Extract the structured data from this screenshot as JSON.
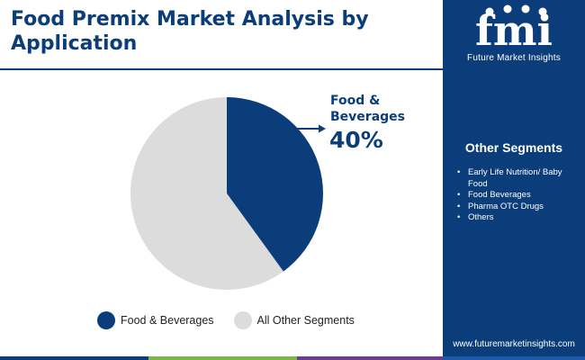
{
  "title": "Food Premix Market Analysis by Application",
  "brand": {
    "name": "Future Market Insights",
    "logo_text": "fmi",
    "website": "www.futuremarketinsights.com"
  },
  "sidebar": {
    "title": "Other Segments",
    "items": [
      "Early Life Nutrition/ Baby Food",
      "Food Beverages",
      "Pharma OTC Drugs",
      "Others"
    ]
  },
  "callout": {
    "label_line1": "Food &",
    "label_line2": "Beverages",
    "value": "40%"
  },
  "colors": {
    "navy": "#0b3d7a",
    "light_gray": "#dcdcdc",
    "bottom_green": "#7ab648",
    "bottom_purple": "#6a3d8f",
    "bottom_blue": "#1e5aa8"
  },
  "chart_data": {
    "type": "pie",
    "title": "Food Premix Market Analysis by Application",
    "slices": [
      {
        "label": "Food & Beverages",
        "value": 40,
        "color": "#0b3d7a"
      },
      {
        "label": "All Other Segments",
        "value": 60,
        "color": "#dcdcdc"
      }
    ],
    "legend_position": "bottom"
  }
}
